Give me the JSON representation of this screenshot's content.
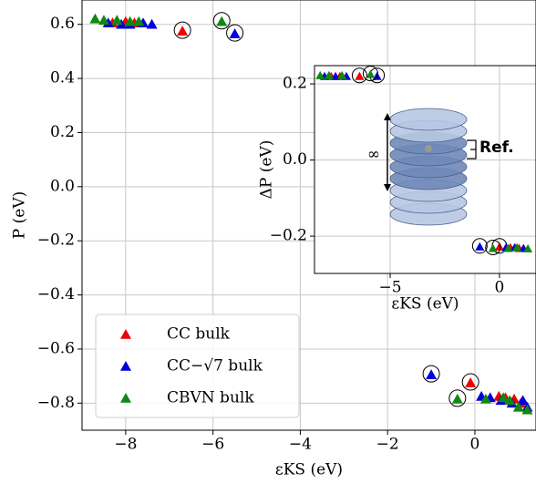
{
  "chart_data": [
    {
      "type": "scatter",
      "title": null,
      "x_label": "εKS (eV)",
      "y_label": "P (eV)",
      "xlim": [
        -9.0,
        1.4
      ],
      "ylim": [
        -0.9,
        0.69
      ],
      "xticks": [
        {
          "value": -8,
          "label": "−8"
        },
        {
          "value": -6,
          "label": "−6"
        },
        {
          "value": -4,
          "label": "−4"
        },
        {
          "value": -2,
          "label": "−2"
        },
        0
      ],
      "yticks": [
        {
          "value": -0.8,
          "label": "−0.8"
        },
        {
          "value": -0.6,
          "label": "−0.6"
        },
        {
          "value": -0.4,
          "label": "−0.4"
        },
        {
          "value": -0.2,
          "label": "−0.2"
        },
        {
          "value": 0,
          "label": "0.0"
        },
        0.2,
        0.4,
        0.6
      ],
      "grid": true,
      "legend": "lower left",
      "series": [
        {
          "name": "CC bulk",
          "color": "#ee0000",
          "x": [
            -8.3,
            -8.0,
            -7.8,
            -6.7,
            -0.1,
            0.55,
            0.7,
            0.9,
            1.05
          ],
          "values": [
            0.605,
            0.61,
            0.605,
            0.575,
            -0.725,
            -0.775,
            -0.78,
            -0.785,
            -0.8
          ],
          "circled": [
            false,
            false,
            false,
            true,
            true,
            false,
            false,
            false,
            false
          ]
        },
        {
          "name": "CC−√7 bulk",
          "color": "#0000dd",
          "x": [
            -8.4,
            -8.1,
            -7.9,
            -7.6,
            -7.4,
            -5.5,
            -1.0,
            0.15,
            0.35,
            0.6,
            0.85,
            1.1,
            1.2
          ],
          "values": [
            0.605,
            0.6,
            0.6,
            0.605,
            0.6,
            0.565,
            -0.695,
            -0.775,
            -0.78,
            -0.79,
            -0.8,
            -0.79,
            -0.815
          ],
          "circled": [
            false,
            false,
            false,
            false,
            false,
            true,
            true,
            false,
            false,
            false,
            false,
            false,
            false
          ]
        },
        {
          "name": "CBVN bulk",
          "color": "#118811",
          "x": [
            -8.7,
            -8.5,
            -8.2,
            -7.9,
            -7.7,
            -5.8,
            -0.4,
            0.25,
            0.65,
            0.8,
            1.0,
            1.2
          ],
          "values": [
            0.62,
            0.615,
            0.615,
            0.61,
            0.61,
            0.61,
            -0.785,
            -0.785,
            -0.78,
            -0.79,
            -0.815,
            -0.825
          ],
          "circled": [
            false,
            false,
            false,
            false,
            false,
            true,
            true,
            false,
            false,
            false,
            false,
            false
          ]
        }
      ]
    },
    {
      "type": "scatter",
      "title": null,
      "x_label": "εKS (eV)",
      "y_label": "ΔP (eV)",
      "xlim": [
        -8.46,
        1.67
      ],
      "ylim": [
        -0.298,
        0.248
      ],
      "xticks": [
        {
          "value": -5,
          "label": "−5"
        },
        0
      ],
      "yticks": [
        {
          "value": -0.2,
          "label": "−0.2"
        },
        {
          "value": 0,
          "label": "0.0"
        },
        0.2
      ],
      "grid": true,
      "annotations": [
        "∞",
        "Ref."
      ],
      "series": [
        {
          "color": "#ee0000",
          "x": [
            -7.7,
            -7.3,
            -6.4,
            0.0,
            0.5,
            0.9
          ],
          "values": [
            0.22,
            0.22,
            0.22,
            -0.228,
            -0.23,
            -0.232
          ],
          "circled": [
            false,
            false,
            true,
            true,
            false,
            false
          ]
        },
        {
          "color": "#0000dd",
          "x": [
            -8.0,
            -7.5,
            -7.0,
            -5.6,
            -0.9,
            0.3,
            0.7,
            1.1
          ],
          "values": [
            0.22,
            0.22,
            0.22,
            0.22,
            -0.228,
            -0.23,
            -0.23,
            -0.232
          ],
          "circled": [
            false,
            false,
            false,
            true,
            true,
            false,
            false,
            false
          ]
        },
        {
          "color": "#118811",
          "x": [
            -8.2,
            -7.8,
            -7.2,
            -5.9,
            -0.3,
            0.4,
            0.8,
            1.3
          ],
          "values": [
            0.222,
            0.222,
            0.222,
            0.225,
            -0.232,
            -0.232,
            -0.23,
            -0.233
          ],
          "circled": [
            false,
            false,
            false,
            true,
            true,
            false,
            false,
            false
          ]
        }
      ]
    }
  ]
}
